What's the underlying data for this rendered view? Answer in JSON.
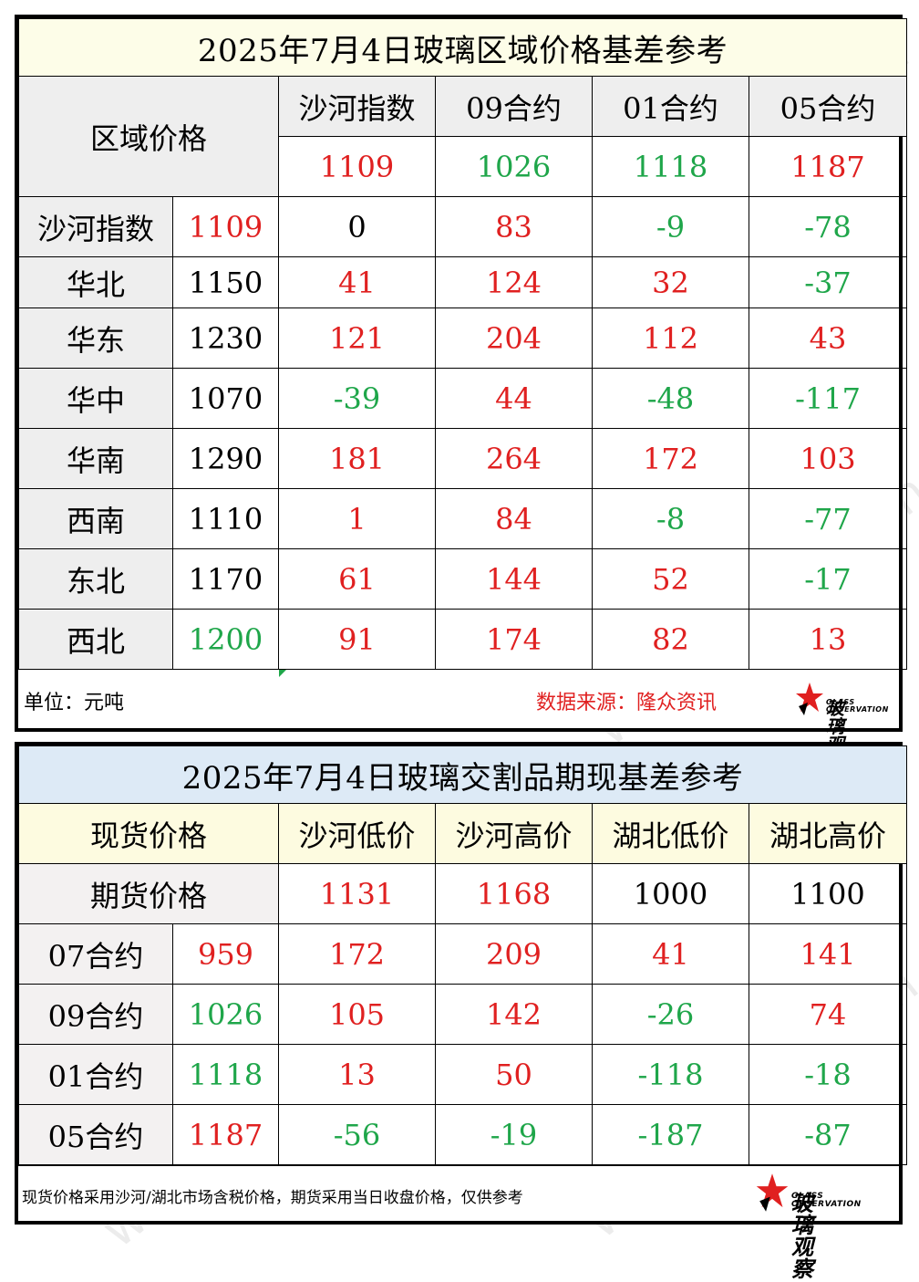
{
  "table1": {
    "title": "2025年7月4日玻璃区域价格基差参考",
    "corner_label": "区域价格",
    "columns": [
      {
        "label": "沙河指数",
        "value": "1109",
        "color": "red"
      },
      {
        "label": "09合约",
        "value": "1026",
        "color": "green"
      },
      {
        "label": "01合约",
        "value": "1118",
        "color": "green"
      },
      {
        "label": "05合约",
        "value": "1187",
        "color": "red"
      }
    ],
    "rows": [
      {
        "name": "沙河指数",
        "price": "1109",
        "price_color": "red",
        "cells": [
          {
            "v": "0",
            "c": "black"
          },
          {
            "v": "83",
            "c": "red"
          },
          {
            "v": "-9",
            "c": "green"
          },
          {
            "v": "-78",
            "c": "green"
          }
        ]
      },
      {
        "name": "华北",
        "price": "1150",
        "price_color": "black",
        "cells": [
          {
            "v": "41",
            "c": "red"
          },
          {
            "v": "124",
            "c": "red"
          },
          {
            "v": "32",
            "c": "red"
          },
          {
            "v": "-37",
            "c": "green"
          }
        ]
      },
      {
        "name": "华东",
        "price": "1230",
        "price_color": "black",
        "cells": [
          {
            "v": "121",
            "c": "red"
          },
          {
            "v": "204",
            "c": "red"
          },
          {
            "v": "112",
            "c": "red"
          },
          {
            "v": "43",
            "c": "red"
          }
        ]
      },
      {
        "name": "华中",
        "price": "1070",
        "price_color": "black",
        "cells": [
          {
            "v": "-39",
            "c": "green"
          },
          {
            "v": "44",
            "c": "red"
          },
          {
            "v": "-48",
            "c": "green"
          },
          {
            "v": "-117",
            "c": "green"
          }
        ]
      },
      {
        "name": "华南",
        "price": "1290",
        "price_color": "black",
        "cells": [
          {
            "v": "181",
            "c": "red"
          },
          {
            "v": "264",
            "c": "red"
          },
          {
            "v": "172",
            "c": "red"
          },
          {
            "v": "103",
            "c": "red"
          }
        ]
      },
      {
        "name": "西南",
        "price": "1110",
        "price_color": "black",
        "cells": [
          {
            "v": "1",
            "c": "red"
          },
          {
            "v": "84",
            "c": "red"
          },
          {
            "v": "-8",
            "c": "green"
          },
          {
            "v": "-77",
            "c": "green"
          }
        ]
      },
      {
        "name": "东北",
        "price": "1170",
        "price_color": "black",
        "cells": [
          {
            "v": "61",
            "c": "red"
          },
          {
            "v": "144",
            "c": "red"
          },
          {
            "v": "52",
            "c": "red"
          },
          {
            "v": "-17",
            "c": "green"
          }
        ]
      },
      {
        "name": "西北",
        "price": "1200",
        "price_color": "green",
        "cells": [
          {
            "v": "91",
            "c": "red"
          },
          {
            "v": "174",
            "c": "red"
          },
          {
            "v": "82",
            "c": "red"
          },
          {
            "v": "13",
            "c": "red"
          }
        ]
      }
    ],
    "unit": "单位：元吨",
    "source": "数据来源：隆众资讯"
  },
  "table2": {
    "title": "2025年7月4日玻璃交割品期现基差参考",
    "corner_label": "现货价格",
    "futures_label": "期货价格",
    "columns": [
      {
        "label": "沙河低价",
        "value": "1131",
        "color": "red"
      },
      {
        "label": "沙河高价",
        "value": "1168",
        "color": "red"
      },
      {
        "label": "湖北低价",
        "value": "1000",
        "color": "black"
      },
      {
        "label": "湖北高价",
        "value": "1100",
        "color": "black"
      }
    ],
    "rows": [
      {
        "name": "07合约",
        "price": "959",
        "price_color": "red",
        "cells": [
          {
            "v": "172",
            "c": "red"
          },
          {
            "v": "209",
            "c": "red"
          },
          {
            "v": "41",
            "c": "red"
          },
          {
            "v": "141",
            "c": "red"
          }
        ]
      },
      {
        "name": "09合约",
        "price": "1026",
        "price_color": "green",
        "cells": [
          {
            "v": "105",
            "c": "red"
          },
          {
            "v": "142",
            "c": "red"
          },
          {
            "v": "-26",
            "c": "green"
          },
          {
            "v": "74",
            "c": "red"
          }
        ]
      },
      {
        "name": "01合约",
        "price": "1118",
        "price_color": "green",
        "cells": [
          {
            "v": "13",
            "c": "red"
          },
          {
            "v": "50",
            "c": "red"
          },
          {
            "v": "-118",
            "c": "green"
          },
          {
            "v": "-18",
            "c": "green"
          }
        ]
      },
      {
        "name": "05合约",
        "price": "1187",
        "price_color": "red",
        "cells": [
          {
            "v": "-56",
            "c": "green"
          },
          {
            "v": "-19",
            "c": "green"
          },
          {
            "v": "-187",
            "c": "green"
          },
          {
            "v": "-87",
            "c": "green"
          }
        ]
      }
    ],
    "note": "现货价格采用沙河/湖北市场含税价格，期货采用当日收盘价格，仅供参考"
  },
  "logo": {
    "cn": "玻璃观察",
    "en": "GLASS OBSERVATION",
    "icon": "star-logo-icon"
  },
  "watermark": "www.glass.sh.cn",
  "colors": {
    "red": "#e02020",
    "green": "#1fa64a"
  }
}
